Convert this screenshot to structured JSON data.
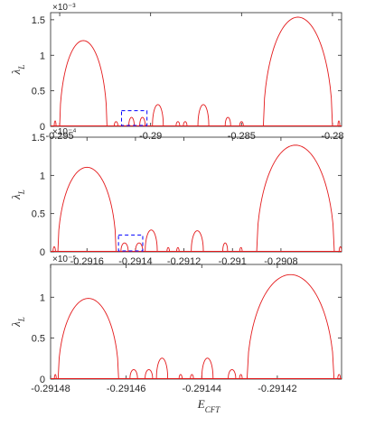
{
  "chart_data": [
    {
      "type": "line",
      "ylabel": "λ_L",
      "xlabel": "",
      "exponent": "×10⁻³",
      "multiplier": 0.001,
      "xlim": [
        -0.2955,
        -0.2795
      ],
      "ylim": [
        0,
        1.6
      ],
      "xticks": [
        -0.295,
        -0.29,
        -0.285,
        -0.28
      ],
      "xtick_labels": [
        "-0.295",
        "-0.29",
        "-0.285",
        "-0.28"
      ],
      "yticks": [
        0,
        0.5,
        1,
        1.5
      ],
      "ytick_labels": [
        "0",
        "0.5",
        "1",
        "1.5"
      ],
      "series": [
        {
          "color": "#e41a1c",
          "lobes": [
            {
              "x0": -0.295,
              "x1": -0.2924,
              "peak": 1.2
            },
            {
              "x0": -0.2838,
              "x1": -0.28,
              "peak": 1.53
            },
            {
              "x0": -0.2899,
              "x1": -0.2893,
              "peak": 0.3
            },
            {
              "x0": -0.2874,
              "x1": -0.2868,
              "peak": 0.3
            },
            {
              "x0": -0.2912,
              "x1": -0.2909,
              "peak": 0.12
            },
            {
              "x0": -0.2906,
              "x1": -0.2903,
              "peak": 0.12
            },
            {
              "x0": -0.2859,
              "x1": -0.2856,
              "peak": 0.12
            },
            {
              "x0": -0.2953,
              "x1": -0.2952,
              "peak": 0.07
            },
            {
              "x0": -0.292,
              "x1": -0.2918,
              "peak": 0.06
            },
            {
              "x0": -0.2886,
              "x1": -0.2884,
              "peak": 0.06
            },
            {
              "x0": -0.2882,
              "x1": -0.288,
              "peak": 0.06
            },
            {
              "x0": -0.2851,
              "x1": -0.2849,
              "peak": 0.06
            },
            {
              "x0": -0.2797,
              "x1": -0.2796,
              "peak": 0.07
            }
          ]
        }
      ],
      "highlight_box": {
        "x": [
          -0.2916,
          -0.2902
        ],
        "y": [
          0,
          0.22
        ],
        "color": "#0000ff",
        "style": "dashed"
      }
    },
    {
      "type": "line",
      "ylabel": "λ_L",
      "xlabel": "",
      "exponent": "×10⁻⁴",
      "multiplier": 0.0001,
      "xlim": [
        -0.29175,
        -0.29055
      ],
      "ylim": [
        0,
        1.5
      ],
      "xticks": [
        -0.2916,
        -0.2914,
        -0.2912,
        -0.291,
        -0.2908
      ],
      "xtick_labels": [
        "-0.2916",
        "-0.2914",
        "-0.2912",
        "-0.291",
        "-0.2908"
      ],
      "yticks": [
        0,
        0.5,
        1,
        1.5
      ],
      "ytick_labels": [
        "0",
        "0.5",
        "1",
        "1.5"
      ],
      "series": [
        {
          "color": "#e41a1c",
          "lobes": [
            {
              "x0": -0.29172,
              "x1": -0.29148,
              "peak": 1.1
            },
            {
              "x0": -0.2909,
              "x1": -0.29058,
              "peak": 1.39
            },
            {
              "x0": -0.29136,
              "x1": -0.29131,
              "peak": 0.28
            },
            {
              "x0": -0.29117,
              "x1": -0.29112,
              "peak": 0.27
            },
            {
              "x0": -0.29146,
              "x1": -0.29143,
              "peak": 0.11
            },
            {
              "x0": -0.2914,
              "x1": -0.29137,
              "peak": 0.11
            },
            {
              "x0": -0.29104,
              "x1": -0.29102,
              "peak": 0.11
            },
            {
              "x0": -0.29174,
              "x1": -0.29173,
              "peak": 0.06
            },
            {
              "x0": -0.29127,
              "x1": -0.29126,
              "peak": 0.05
            },
            {
              "x0": -0.29123,
              "x1": -0.29122,
              "peak": 0.05
            },
            {
              "x0": -0.29097,
              "x1": -0.29096,
              "peak": 0.05
            },
            {
              "x0": -0.29056,
              "x1": -0.29055,
              "peak": 0.06
            }
          ]
        }
      ],
      "highlight_box": {
        "x": [
          -0.29147,
          -0.29137
        ],
        "y": [
          0,
          0.22
        ],
        "color": "#0000ff",
        "style": "dashed"
      }
    },
    {
      "type": "line",
      "ylabel": "λ_L",
      "xlabel": "E_CFT",
      "exponent": "×10⁻⁵",
      "multiplier": 1e-05,
      "xlim": [
        -0.29148,
        -0.291403
      ],
      "ylim": [
        0,
        1.4
      ],
      "xticks": [
        -0.29148,
        -0.29146,
        -0.29144,
        -0.29142
      ],
      "xtick_labels": [
        "-0.29148",
        "-0.29146",
        "-0.29144",
        "-0.29142"
      ],
      "yticks": [
        0,
        0.5,
        1
      ],
      "ytick_labels": [
        "0",
        "0.5",
        "1"
      ],
      "series": [
        {
          "color": "#e41a1c",
          "lobes": [
            {
              "x0": -0.291478,
              "x1": -0.291462,
              "peak": 0.98
            },
            {
              "x0": -0.291428,
              "x1": -0.291405,
              "peak": 1.27
            },
            {
              "x0": -0.291452,
              "x1": -0.291449,
              "peak": 0.25
            },
            {
              "x0": -0.29144,
              "x1": -0.291437,
              "peak": 0.25
            },
            {
              "x0": -0.291459,
              "x1": -0.291457,
              "peak": 0.11
            },
            {
              "x0": -0.291455,
              "x1": -0.291453,
              "peak": 0.11
            },
            {
              "x0": -0.291433,
              "x1": -0.291431,
              "peak": 0.11
            },
            {
              "x0": -0.291479,
              "x1": -0.2914785,
              "peak": 0.05
            },
            {
              "x0": -0.291446,
              "x1": -0.2914452,
              "peak": 0.05
            },
            {
              "x0": -0.291443,
              "x1": -0.2914422,
              "peak": 0.05
            },
            {
              "x0": -0.29143,
              "x1": -0.2914293,
              "peak": 0.05
            },
            {
              "x0": -0.291404,
              "x1": -0.2914033,
              "peak": 0.05
            }
          ]
        }
      ],
      "highlight_box": null
    }
  ]
}
